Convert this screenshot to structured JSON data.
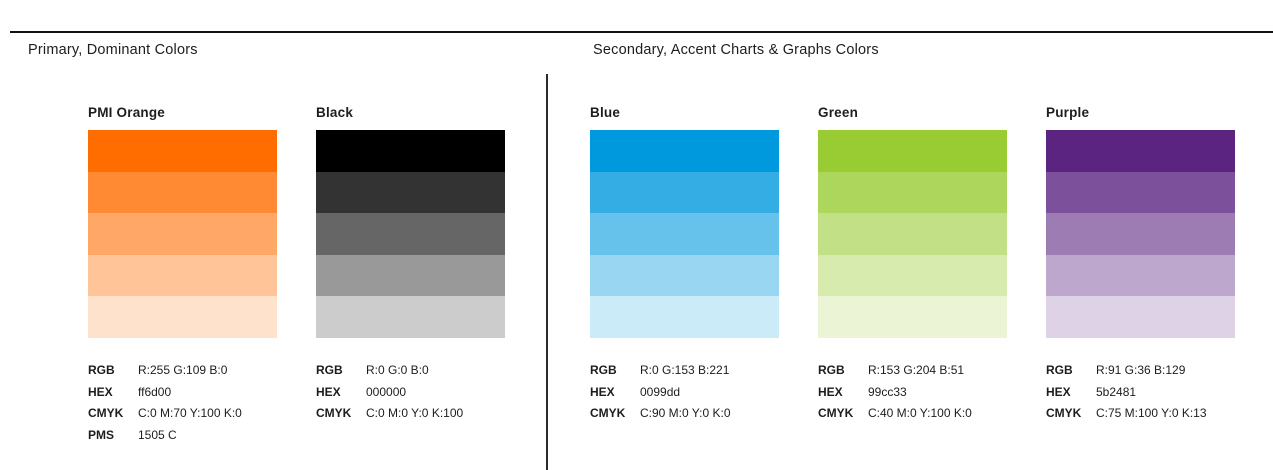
{
  "page": {
    "background": "#ffffff",
    "text_color": "#1d1d1d",
    "rule_color": "#111111"
  },
  "sections": [
    {
      "title": "Primary, Dominant Colors",
      "swatches": [
        {
          "name": "PMI Orange",
          "hex_color": "#ff6d00",
          "tints": [
            1,
            0.8,
            0.6,
            0.4,
            0.2
          ],
          "specs": [
            {
              "label": "RGB",
              "value": "R:255 G:109 B:0"
            },
            {
              "label": "HEX",
              "value": "ff6d00"
            },
            {
              "label": "CMYK",
              "value": "C:0 M:70 Y:100 K:0"
            },
            {
              "label": "PMS",
              "value": "1505 C"
            }
          ]
        },
        {
          "name": "Black",
          "hex_color": "#000000",
          "tints": [
            1,
            0.8,
            0.6,
            0.4,
            0.2
          ],
          "specs": [
            {
              "label": "RGB",
              "value": "R:0 G:0 B:0"
            },
            {
              "label": "HEX",
              "value": "000000"
            },
            {
              "label": "CMYK",
              "value": "C:0 M:0 Y:0 K:100"
            }
          ]
        }
      ]
    },
    {
      "title": "Secondary, Accent Charts & Graphs Colors",
      "swatches": [
        {
          "name": "Blue",
          "hex_color": "#0099dd",
          "tints": [
            1,
            0.8,
            0.6,
            0.4,
            0.2
          ],
          "specs": [
            {
              "label": "RGB",
              "value": "R:0 G:153 B:221"
            },
            {
              "label": "HEX",
              "value": "0099dd"
            },
            {
              "label": "CMYK",
              "value": "C:90 M:0 Y:0 K:0"
            }
          ]
        },
        {
          "name": "Green",
          "hex_color": "#99cc33",
          "tints": [
            1,
            0.8,
            0.6,
            0.4,
            0.2
          ],
          "specs": [
            {
              "label": "RGB",
              "value": "R:153 G:204 B:51"
            },
            {
              "label": "HEX",
              "value": "99cc33"
            },
            {
              "label": "CMYK",
              "value": "C:40 M:0 Y:100 K:0"
            }
          ]
        },
        {
          "name": "Purple",
          "hex_color": "#5b2481",
          "tints": [
            1,
            0.8,
            0.6,
            0.4,
            0.2
          ],
          "specs": [
            {
              "label": "RGB",
              "value": "R:91 G:36 B:129"
            },
            {
              "label": "HEX",
              "value": "5b2481"
            },
            {
              "label": "CMYK",
              "value": "C:75 M:100 Y:0 K:13"
            }
          ]
        }
      ]
    }
  ]
}
